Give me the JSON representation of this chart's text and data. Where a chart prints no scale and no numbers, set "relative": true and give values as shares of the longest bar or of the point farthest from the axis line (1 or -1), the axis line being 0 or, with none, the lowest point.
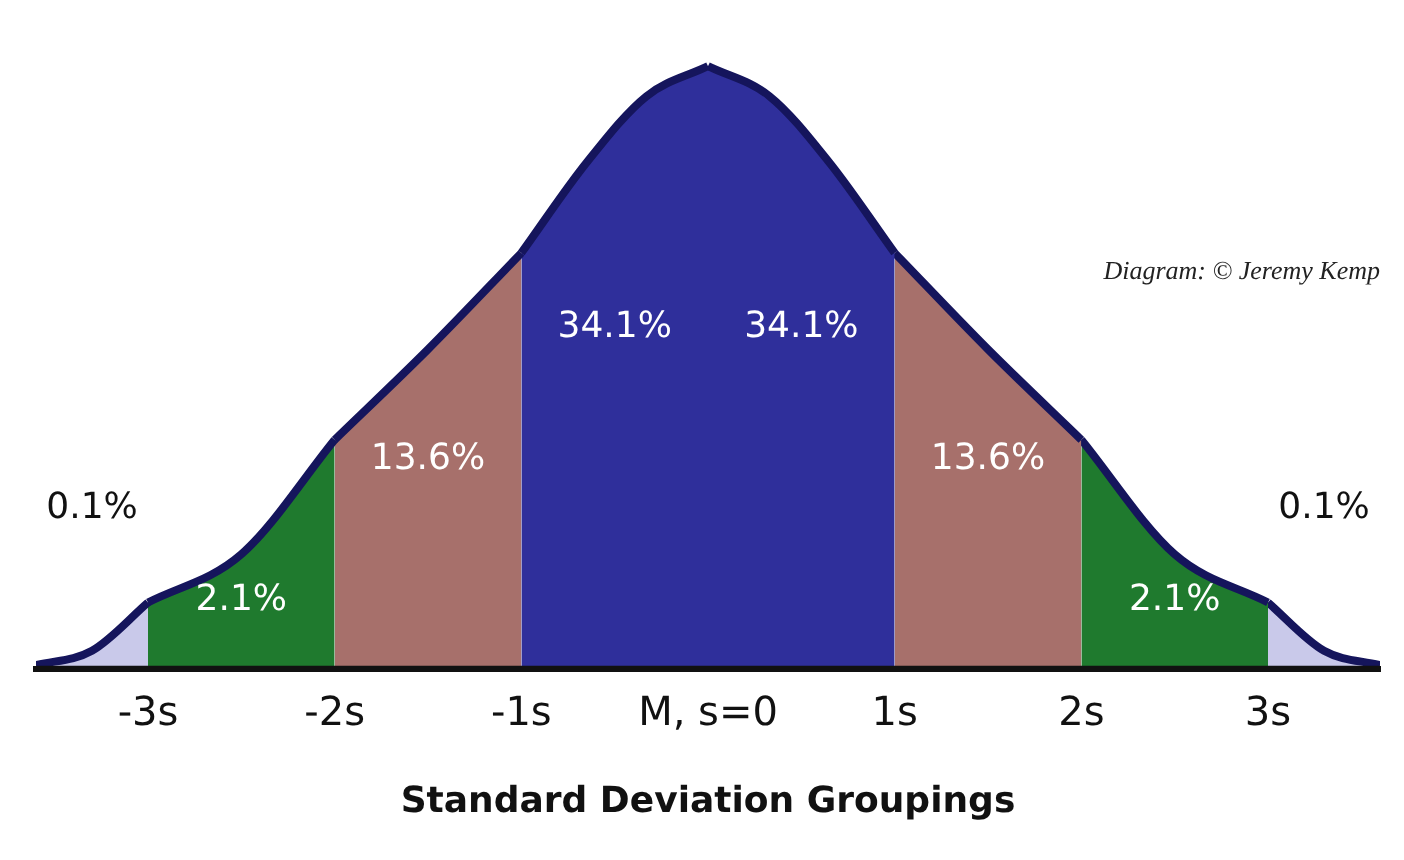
{
  "chart_data": {
    "type": "area",
    "relative": true,
    "xlabel": "Standard Deviation Groupings",
    "xlim": [
      -3.6,
      3.6
    ],
    "xticks": [
      {
        "value": -3,
        "label": "-3s"
      },
      {
        "value": -2,
        "label": "-2s"
      },
      {
        "value": -1,
        "label": "-1s"
      },
      {
        "value": 0,
        "label": "M, s=0"
      },
      {
        "value": 1,
        "label": "1s"
      },
      {
        "value": 2,
        "label": "2s"
      },
      {
        "value": 3,
        "label": "3s"
      }
    ],
    "grid": false,
    "legend": false,
    "series": [
      {
        "color": "#c9c9ea",
        "x": [
          -3.6,
          -3.3,
          -3
        ],
        "values": [
          0.006,
          0.03,
          0.11
        ]
      },
      {
        "color": "#1f7a2e",
        "x": [
          -3,
          -2.5,
          -2
        ],
        "values": [
          0.11,
          0.19,
          0.38
        ]
      },
      {
        "color": "#a7706b",
        "x": [
          -2,
          -1.5,
          -1
        ],
        "values": [
          0.38,
          0.53,
          0.69
        ]
      },
      {
        "color": "#2f2f9b",
        "x": [
          -1,
          -0.65,
          -0.33,
          0
        ],
        "values": [
          0.69,
          0.84,
          0.95,
          1
        ]
      },
      {
        "color": "#2f2f9b",
        "x": [
          0,
          0.33,
          0.65,
          1
        ],
        "values": [
          1,
          0.95,
          0.84,
          0.69
        ]
      },
      {
        "color": "#a7706b",
        "x": [
          1,
          1.5,
          2
        ],
        "values": [
          0.69,
          0.53,
          0.38
        ]
      },
      {
        "color": "#1f7a2e",
        "x": [
          2,
          2.5,
          3
        ],
        "values": [
          0.38,
          0.19,
          0.11
        ]
      },
      {
        "color": "#c9c9ea",
        "x": [
          3,
          3.3,
          3.6
        ],
        "values": [
          0.11,
          0.03,
          0.006
        ]
      }
    ],
    "annotations": [
      "0.1%",
      "2.1%",
      "13.6%",
      "34.1%",
      "34.1%",
      "13.6%",
      "2.1%",
      "0.1%",
      "Diagram: © Jeremy Kemp"
    ]
  }
}
